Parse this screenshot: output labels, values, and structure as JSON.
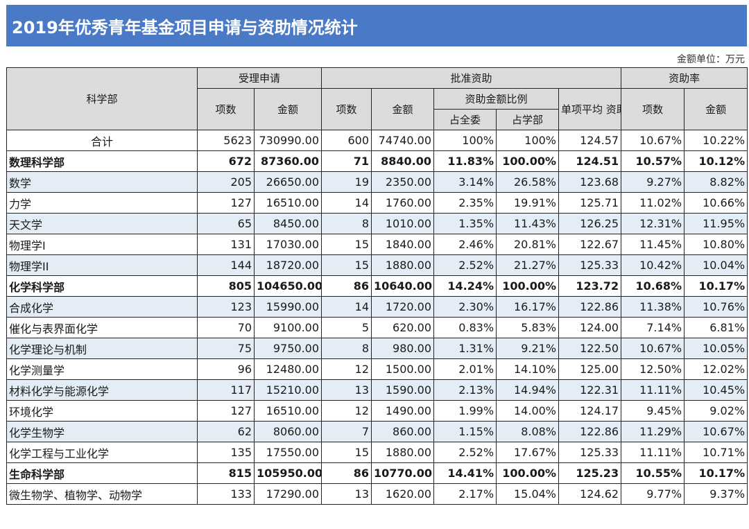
{
  "title": "2019年优秀青年基金项目申请与资助情况统计",
  "unit_note": "金额单位：万元",
  "headers": {
    "dept": "科学部",
    "accepted": "受理申请",
    "approved": "批准资助",
    "rate": "资助率",
    "count": "项数",
    "amount": "金额",
    "ratio": "资助金额比例",
    "ratio_all": "占全委",
    "ratio_dept": "占学部",
    "avg": "单项平均 资助金额"
  },
  "rows": [
    {
      "name": "合计",
      "kind": "total",
      "cells": [
        "5623",
        "730990.00",
        "600",
        "74740.00",
        "100%",
        "100%",
        "124.57",
        "10.67%",
        "10.22%"
      ]
    },
    {
      "name": "数理科学部",
      "kind": "dept",
      "cells": [
        "672",
        "87360.00",
        "71",
        "8840.00",
        "11.83%",
        "100.00%",
        "124.51",
        "10.57%",
        "10.12%"
      ]
    },
    {
      "name": "数学",
      "kind": "shade",
      "cells": [
        "205",
        "26650.00",
        "19",
        "2350.00",
        "3.14%",
        "26.58%",
        "123.68",
        "9.27%",
        "8.82%"
      ]
    },
    {
      "name": "力学",
      "kind": "plain",
      "cells": [
        "127",
        "16510.00",
        "14",
        "1760.00",
        "2.35%",
        "19.91%",
        "125.71",
        "11.02%",
        "10.66%"
      ]
    },
    {
      "name": "天文学",
      "kind": "shade",
      "cells": [
        "65",
        "8450.00",
        "8",
        "1010.00",
        "1.35%",
        "11.43%",
        "126.25",
        "12.31%",
        "11.95%"
      ]
    },
    {
      "name": "物理学I",
      "kind": "plain",
      "cells": [
        "131",
        "17030.00",
        "15",
        "1840.00",
        "2.46%",
        "20.81%",
        "122.67",
        "11.45%",
        "10.80%"
      ]
    },
    {
      "name": "物理学II",
      "kind": "shade",
      "cells": [
        "144",
        "18720.00",
        "15",
        "1880.00",
        "2.52%",
        "21.27%",
        "125.33",
        "10.42%",
        "10.04%"
      ]
    },
    {
      "name": "化学科学部",
      "kind": "dept",
      "cells": [
        "805",
        "104650.00",
        "86",
        "10640.00",
        "14.24%",
        "100.00%",
        "123.72",
        "10.68%",
        "10.17%"
      ]
    },
    {
      "name": "合成化学",
      "kind": "shade",
      "cells": [
        "123",
        "15990.00",
        "14",
        "1720.00",
        "2.30%",
        "16.17%",
        "122.86",
        "11.38%",
        "10.76%"
      ]
    },
    {
      "name": "催化与表界面化学",
      "kind": "plain",
      "cells": [
        "70",
        "9100.00",
        "5",
        "620.00",
        "0.83%",
        "5.83%",
        "124.00",
        "7.14%",
        "6.81%"
      ]
    },
    {
      "name": "化学理论与机制",
      "kind": "shade",
      "cells": [
        "75",
        "9750.00",
        "8",
        "980.00",
        "1.31%",
        "9.21%",
        "122.50",
        "10.67%",
        "10.05%"
      ]
    },
    {
      "name": "化学测量学",
      "kind": "plain",
      "cells": [
        "96",
        "12480.00",
        "12",
        "1500.00",
        "2.01%",
        "14.10%",
        "125.00",
        "12.50%",
        "12.02%"
      ]
    },
    {
      "name": "材料化学与能源化学",
      "kind": "shade",
      "cells": [
        "117",
        "15210.00",
        "13",
        "1590.00",
        "2.13%",
        "14.94%",
        "122.31",
        "11.11%",
        "10.45%"
      ]
    },
    {
      "name": "环境化学",
      "kind": "plain",
      "cells": [
        "127",
        "16510.00",
        "12",
        "1490.00",
        "1.99%",
        "14.00%",
        "124.17",
        "9.45%",
        "9.02%"
      ]
    },
    {
      "name": "化学生物学",
      "kind": "shade",
      "cells": [
        "62",
        "8060.00",
        "7",
        "860.00",
        "1.15%",
        "8.08%",
        "122.86",
        "11.29%",
        "10.67%"
      ]
    },
    {
      "name": "化学工程与工业化学",
      "kind": "plain",
      "cells": [
        "135",
        "17550.00",
        "15",
        "1880.00",
        "2.52%",
        "17.67%",
        "125.33",
        "11.11%",
        "10.71%"
      ]
    },
    {
      "name": "生命科学部",
      "kind": "dept",
      "cells": [
        "815",
        "105950.00",
        "86",
        "10770.00",
        "14.41%",
        "100.00%",
        "125.23",
        "10.55%",
        "10.17%"
      ]
    },
    {
      "name": "微生物学、植物学、动物学",
      "kind": "plain",
      "cells": [
        "133",
        "17290.00",
        "13",
        "1620.00",
        "2.17%",
        "15.04%",
        "124.62",
        "9.77%",
        "9.37%"
      ]
    }
  ]
}
